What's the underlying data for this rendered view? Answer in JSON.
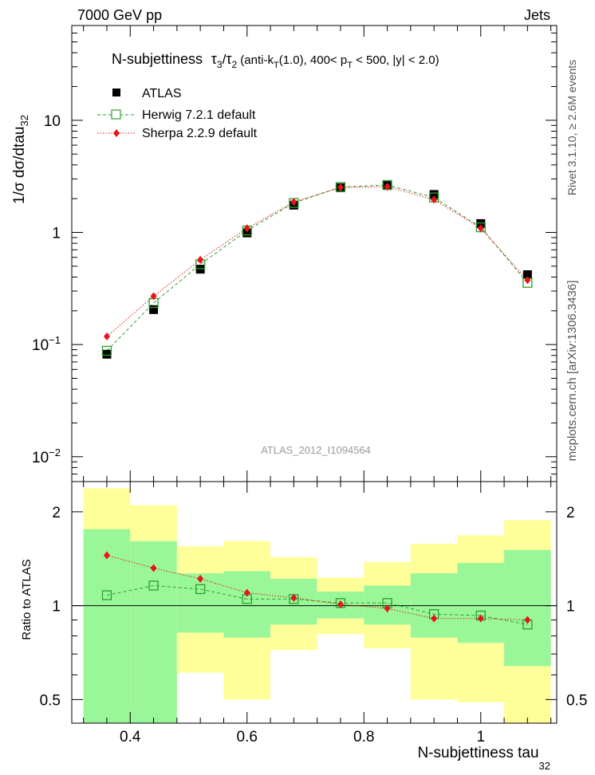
{
  "header": {
    "left": "7000 GeV pp",
    "right": "Jets"
  },
  "side_text": {
    "top": "Rivet 3.1.10, ≥ 2.6M events",
    "bottom": "mcplots.cern.ch [arXiv:1306.3436]"
  },
  "chart_data": [
    {
      "type": "scatter",
      "title_parts": {
        "name": "N-subjettiness",
        "t3": "τ",
        "t3_sub": "3",
        "slash": "/",
        "t2": "τ",
        "t2_sub": "2",
        "c1": " (anti-k",
        "c1_sub": "T",
        "c2": "(1.0), 400< p",
        "c2_sub": "T",
        "c3": " < 500, |y| < 2.0)"
      },
      "ylabel": "1/σ dσ/dtau",
      "ylabel_sub": "32",
      "watermark": "ATLAS_2012_I1094564",
      "yscale": "log",
      "ylim": [
        0.006,
        70
      ],
      "xlim": [
        0.3,
        1.13
      ],
      "y_ticks": [
        {
          "value": 0.01,
          "base": "10",
          "exp": "−2"
        },
        {
          "value": 0.1,
          "base": "10",
          "exp": "−1"
        },
        {
          "value": 1,
          "base": "1",
          "exp": ""
        },
        {
          "value": 10,
          "base": "10",
          "exp": ""
        }
      ],
      "legend": "top-left",
      "series": [
        {
          "name": "ATLAS",
          "color": "#000000",
          "marker": "filled-square",
          "x": [
            0.36,
            0.44,
            0.52,
            0.6,
            0.68,
            0.76,
            0.84,
            0.92,
            1.0,
            1.08
          ],
          "y": [
            0.082,
            0.205,
            0.47,
            0.99,
            1.75,
            2.5,
            2.62,
            2.18,
            1.2,
            0.42
          ]
        },
        {
          "name": "Herwig 7.2.1 default",
          "color": "#2ca02c",
          "marker": "open-square",
          "line": "dashed",
          "x": [
            0.36,
            0.44,
            0.52,
            0.6,
            0.68,
            0.76,
            0.84,
            0.92,
            1.0,
            1.08
          ],
          "y": [
            0.088,
            0.235,
            0.52,
            1.04,
            1.83,
            2.54,
            2.65,
            2.05,
            1.11,
            0.355
          ]
        },
        {
          "name": "Sherpa 2.2.9 default",
          "color": "#e8141c",
          "marker": "diamond",
          "line": "dotted",
          "x": [
            0.36,
            0.44,
            0.52,
            0.6,
            0.68,
            0.76,
            0.84,
            0.92,
            1.0,
            1.08
          ],
          "y": [
            0.118,
            0.27,
            0.57,
            1.09,
            1.87,
            2.52,
            2.56,
            1.96,
            1.09,
            0.375
          ]
        }
      ]
    },
    {
      "type": "scatter",
      "ylabel": "Ratio to ATLAS",
      "xlabel": "N-subjettiness tau",
      "xlabel_sub": "32",
      "yscale": "log",
      "ylim": [
        0.42,
        2.5
      ],
      "xlim": [
        0.3,
        1.13
      ],
      "x_ticks": [
        "0.4",
        "0.6",
        "0.8",
        "1"
      ],
      "x_tick_values": [
        0.4,
        0.6,
        0.8,
        1.0
      ],
      "y_ticks": [
        "0.5",
        "1",
        "2"
      ],
      "y_tick_values": [
        0.5,
        1,
        2
      ],
      "bands": {
        "bin_edges": [
          0.32,
          0.4,
          0.48,
          0.56,
          0.64,
          0.72,
          0.8,
          0.88,
          0.96,
          1.04,
          1.12
        ],
        "inner_color": "#99f799",
        "outer_color": "#ffff99",
        "inner_lo": [
          0.42,
          0.42,
          0.82,
          0.79,
          0.87,
          0.91,
          0.87,
          0.79,
          0.76,
          0.64
        ],
        "inner_hi": [
          1.76,
          1.61,
          1.27,
          1.29,
          1.22,
          1.11,
          1.16,
          1.27,
          1.37,
          1.51
        ],
        "outer_lo": [
          0.42,
          0.47,
          0.61,
          0.5,
          0.72,
          0.81,
          0.73,
          0.5,
          0.49,
          0.42
        ],
        "outer_hi": [
          2.38,
          2.1,
          1.55,
          1.61,
          1.43,
          1.23,
          1.38,
          1.58,
          1.68,
          1.88
        ]
      },
      "series": [
        {
          "name": "Herwig 7.2.1 default",
          "color": "#2ca02c",
          "marker": "open-square",
          "line": "dashed",
          "x": [
            0.36,
            0.44,
            0.52,
            0.6,
            0.68,
            0.76,
            0.84,
            0.92,
            1.0,
            1.08
          ],
          "y": [
            1.08,
            1.16,
            1.13,
            1.05,
            1.05,
            1.02,
            1.02,
            0.94,
            0.93,
            0.87
          ]
        },
        {
          "name": "Sherpa 2.2.9 default",
          "color": "#e8141c",
          "marker": "diamond",
          "line": "dotted",
          "x": [
            0.36,
            0.44,
            0.52,
            0.6,
            0.68,
            0.76,
            0.84,
            0.92,
            1.0,
            1.08
          ],
          "y": [
            1.45,
            1.32,
            1.22,
            1.1,
            1.06,
            1.01,
            0.98,
            0.91,
            0.91,
            0.9
          ]
        }
      ]
    }
  ]
}
